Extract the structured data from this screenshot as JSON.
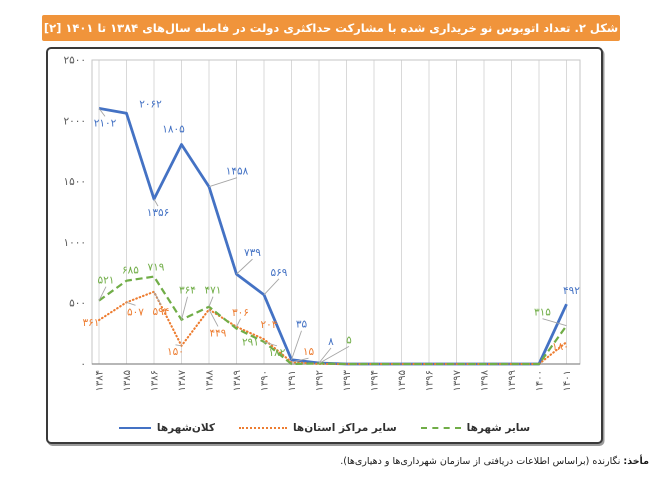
{
  "title": {
    "text": "شکل ۲. تعداد اتوبوس نو خریداری شده با مشارکت حداکثری دولت در فاصله سال‌های ۱۳۸۴ تا ۱۴۰۱ [۲]"
  },
  "footnote": {
    "source_label": "مأخذ:",
    "source_text": "نگارنده (براساس اطلاعات دریافتی از سازمان شهرداری‌ها و دهیاری‌ها)."
  },
  "legend": {
    "items": [
      {
        "id": "metropolises",
        "label": "کلان‌شهرها",
        "color": "#4472C4",
        "line_style": "solid"
      },
      {
        "id": "province-centers",
        "label": "سایر مراکز استان‌ها",
        "color": "#ED7D31",
        "line_style": "dotted"
      },
      {
        "id": "other-cities",
        "label": "سایر شهرها",
        "color": "#70AD47",
        "line_style": "dashed"
      }
    ]
  },
  "colors": {
    "banner": "#F0943B",
    "banner_text": "#FFFFFF",
    "axis_text": "#595959",
    "gridline": "#D9D9D9",
    "plot_border": "#C6C6C6",
    "axis_line": "#8C8C8C",
    "leader_line": "#A6A6A6",
    "box_border": "#3A3A3A"
  },
  "chart_data": {
    "type": "line",
    "title": "شکل ۲. تعداد اتوبوس نو خریداری شده با مشارکت حداکثری دولت در فاصله سال‌های ۱۳۸۴ تا ۱۴۰۱ [۲]",
    "x": [
      1384,
      1385,
      1386,
      1387,
      1388,
      1389,
      1390,
      1391,
      1392,
      1393,
      1394,
      1395,
      1396,
      1397,
      1398,
      1399,
      1400,
      1401
    ],
    "digit_style": "persian",
    "xlabel": "",
    "ylabel": "",
    "ylim": [
      0,
      2500
    ],
    "yticks": [
      0,
      500,
      1000,
      1500,
      2000,
      2500
    ],
    "grid": "vertical-only",
    "legend_position": "bottom",
    "series": [
      {
        "id": "metropolises",
        "name": "کلان‌شهرها",
        "color": "#4472C4",
        "style": "solid",
        "values": [
          2102,
          2062,
          1356,
          1805,
          1458,
          739,
          569,
          35,
          8,
          0,
          0,
          0,
          0,
          0,
          0,
          0,
          0,
          492
        ],
        "labels": [
          {
            "year": 1384,
            "value": 2102,
            "dx": 6,
            "dy": 18,
            "leader": true
          },
          {
            "year": 1385,
            "value": 2062,
            "dx": 24,
            "dy": -6,
            "leader": false
          },
          {
            "year": 1386,
            "value": 1356,
            "dx": 4,
            "dy": 17,
            "leader": true
          },
          {
            "year": 1387,
            "value": 1805,
            "dx": -8,
            "dy": -12,
            "leader": false
          },
          {
            "year": 1388,
            "value": 1458,
            "dx": 28,
            "dy": -12,
            "leader": true
          },
          {
            "year": 1389,
            "value": 739,
            "dx": 16,
            "dy": -18,
            "leader": true
          },
          {
            "year": 1390,
            "value": 569,
            "dx": 15,
            "dy": -19,
            "leader": true
          },
          {
            "year": 1391,
            "value": 35,
            "dx": 10,
            "dy": -32,
            "leader": true
          },
          {
            "year": 1392,
            "value": 8,
            "dx": 12,
            "dy": -18,
            "leader": true
          },
          {
            "year": 1401,
            "value": 492,
            "dx": 5,
            "dy": -10,
            "leader": false
          }
        ]
      },
      {
        "id": "province-centers",
        "name": "سایر مراکز استان‌ها",
        "color": "#ED7D31",
        "style": "dotted",
        "values": [
          361,
          507,
          594,
          150,
          449,
          306,
          204,
          15,
          0,
          0,
          0,
          0,
          0,
          0,
          0,
          0,
          0,
          180
        ],
        "labels": [
          {
            "year": 1384,
            "value": 361,
            "dx": -8,
            "dy": 6,
            "leader": false
          },
          {
            "year": 1385,
            "value": 507,
            "dx": 9,
            "dy": 13,
            "leader": true
          },
          {
            "year": 1386,
            "value": 594,
            "dx": 7,
            "dy": 23,
            "leader": true
          },
          {
            "year": 1387,
            "value": 150,
            "dx": -6,
            "dy": 9,
            "leader": true
          },
          {
            "year": 1388,
            "value": 449,
            "dx": 9,
            "dy": 27,
            "leader": true
          },
          {
            "year": 1389,
            "value": 306,
            "dx": 4,
            "dy": -11,
            "leader": true
          },
          {
            "year": 1390,
            "value": 204,
            "dx": 5,
            "dy": -11,
            "leader": false
          },
          {
            "year": 1391,
            "value": 15,
            "dx": 17,
            "dy": -7,
            "leader": true
          },
          {
            "year": 1401,
            "value": 180,
            "dx": -6,
            "dy": 8,
            "leader": false
          }
        ]
      },
      {
        "id": "other-cities",
        "name": "سایر شهرها",
        "color": "#70AD47",
        "style": "dashed",
        "values": [
          521,
          685,
          719,
          364,
          471,
          291,
          182,
          0,
          5,
          0,
          0,
          0,
          0,
          0,
          0,
          0,
          0,
          315
        ],
        "labels": [
          {
            "year": 1384,
            "value": 521,
            "dx": 7,
            "dy": -17,
            "leader": true
          },
          {
            "year": 1385,
            "value": 685,
            "dx": 4,
            "dy": -7,
            "leader": false
          },
          {
            "year": 1386,
            "value": 719,
            "dx": 2,
            "dy": -6,
            "leader": false
          },
          {
            "year": 1387,
            "value": 364,
            "dx": 6,
            "dy": -26,
            "leader": true
          },
          {
            "year": 1388,
            "value": 471,
            "dx": 4,
            "dy": -13,
            "leader": true
          },
          {
            "year": 1389,
            "value": 291,
            "dx": 14,
            "dy": 17,
            "leader": false
          },
          {
            "year": 1390,
            "value": 182,
            "dx": 13,
            "dy": 14,
            "leader": true
          },
          {
            "year": 1392,
            "value": 5,
            "dx": 30,
            "dy": -20,
            "leader": true
          },
          {
            "year": 1401,
            "value": 315,
            "dx": -24,
            "dy": -10,
            "leader": true
          }
        ]
      }
    ]
  }
}
